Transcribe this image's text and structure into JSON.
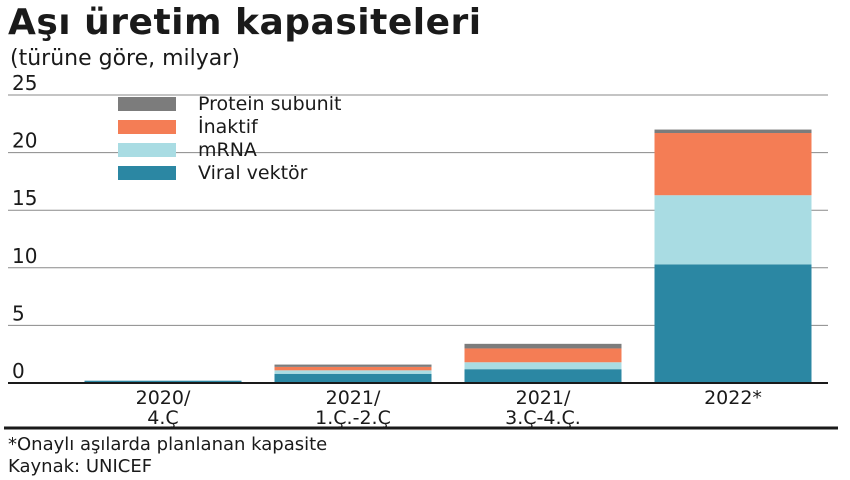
{
  "title": "Aşı üretim kapasiteleri",
  "subtitle": "(türüne göre, milyar)",
  "footnote": "*Onaylı aşılarda planlanan kapasite",
  "source": "Kaynak: UNICEF",
  "colors": {
    "Viral vektör": "#2b87a3",
    "mRNA": "#a9dce3",
    "İnaktif": "#f47d55",
    "Protein subunit": "#7c7c7c",
    "grid": "#8a8a8a",
    "axis": "#1a1a1a"
  },
  "chart_data": {
    "type": "bar",
    "stacked": true,
    "categories": [
      [
        "2020/",
        "4.Ç"
      ],
      [
        "2021/",
        "1.Ç.-2.Ç"
      ],
      [
        "2021/",
        "3.Ç-4.Ç."
      ],
      [
        "2022*"
      ]
    ],
    "series": [
      {
        "name": "Viral vektör",
        "values": [
          0.2,
          0.8,
          1.2,
          10.3
        ]
      },
      {
        "name": "mRNA",
        "values": [
          0.0,
          0.3,
          0.6,
          6.0
        ]
      },
      {
        "name": "İnaktif",
        "values": [
          0.0,
          0.3,
          1.2,
          5.4
        ]
      },
      {
        "name": "Protein subunit",
        "values": [
          0.0,
          0.2,
          0.4,
          0.3
        ]
      }
    ],
    "legend_order": [
      "Protein subunit",
      "İnaktif",
      "mRNA",
      "Viral vektör"
    ],
    "ylim": [
      0,
      25
    ],
    "yticks": [
      0,
      5,
      10,
      15,
      20,
      25
    ],
    "grid": true,
    "legend_position": "top-left",
    "xlabel": "",
    "ylabel": ""
  }
}
